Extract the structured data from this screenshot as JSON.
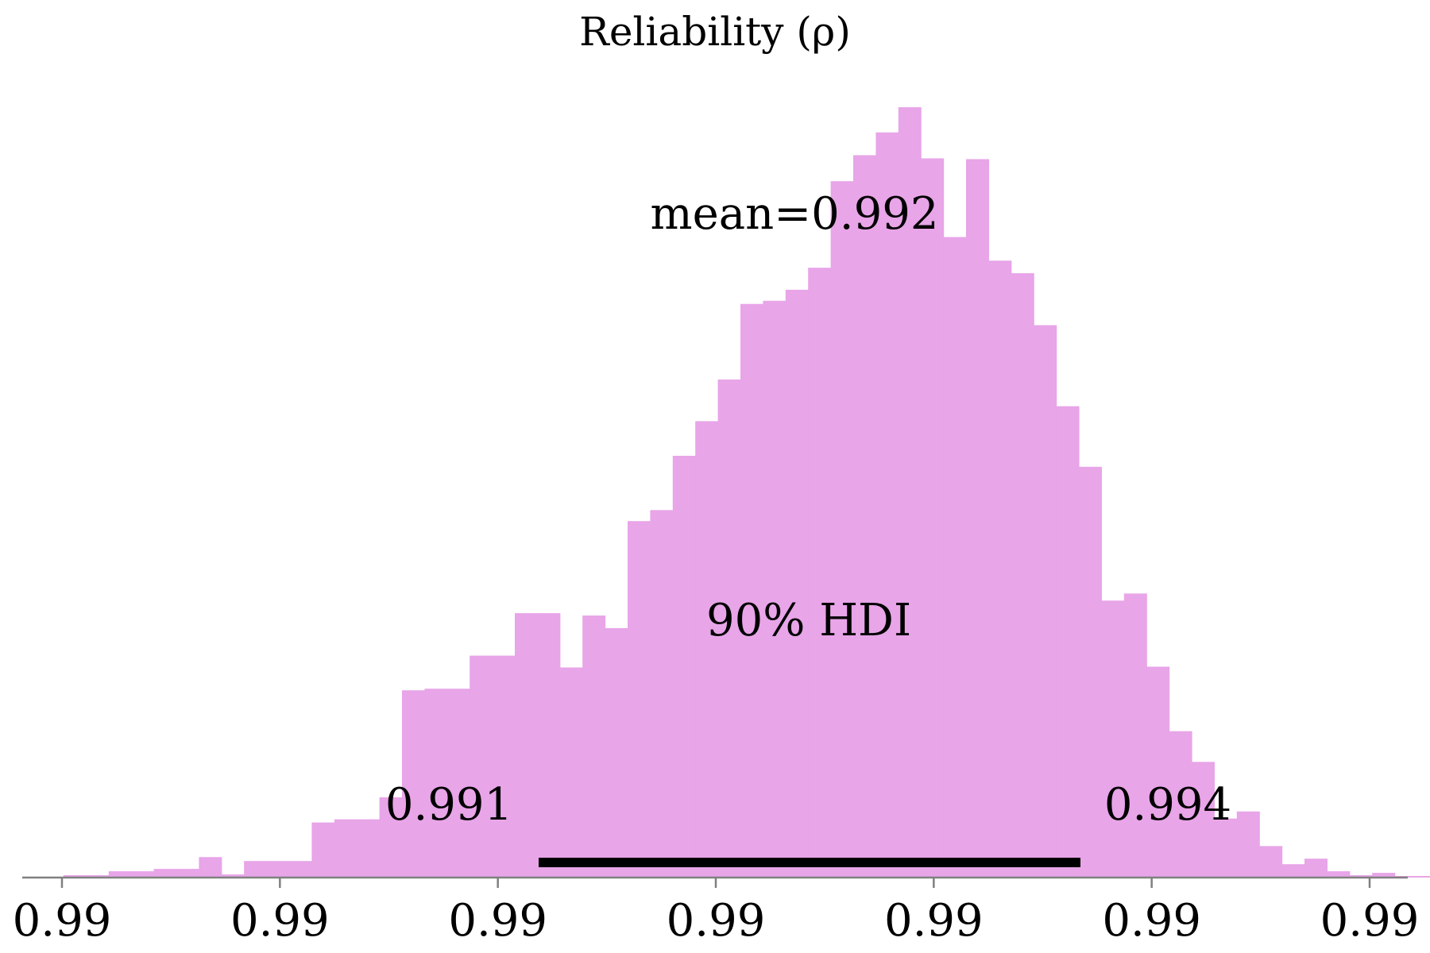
{
  "chart_data": {
    "type": "bar",
    "title": "Reliability (ρ)",
    "xlabel": "",
    "ylabel": "",
    "x_ticks": [
      "0.99",
      "0.99",
      "0.99",
      "0.99",
      "0.99",
      "0.99",
      "0.99"
    ],
    "bin_heights": [
      0.3,
      0.3,
      0.8,
      0.8,
      1.1,
      1.1,
      2.6,
      0.4,
      2.1,
      2.1,
      2.1,
      7.0,
      7.4,
      7.4,
      10.2,
      23.8,
      24.0,
      24.0,
      28.2,
      28.2,
      33.6,
      33.6,
      26.7,
      33.3,
      31.7,
      45.3,
      46.7,
      53.6,
      58.0,
      63.3,
      72.9,
      73.3,
      74.7,
      77.5,
      88.5,
      91.8,
      94.7,
      97.9,
      91.4,
      81.4,
      91.3,
      78.4,
      76.8,
      70.2,
      59.9,
      52.2,
      35.2,
      36.1,
      26.8,
      18.6,
      14.7,
      7.5,
      8.4,
      4.0,
      1.7,
      2.4,
      0.8,
      0.3,
      0.6,
      0.2,
      0.2
    ],
    "color": "#e8a5e8",
    "point_estimate": {
      "label": "mean=0.992",
      "value": 0.992
    },
    "hdi": {
      "label": "90% HDI",
      "prob": 0.9,
      "low": 0.991,
      "high": 0.994,
      "low_label": "0.991",
      "high_label": "0.994"
    },
    "grid": false,
    "legend": "none"
  }
}
